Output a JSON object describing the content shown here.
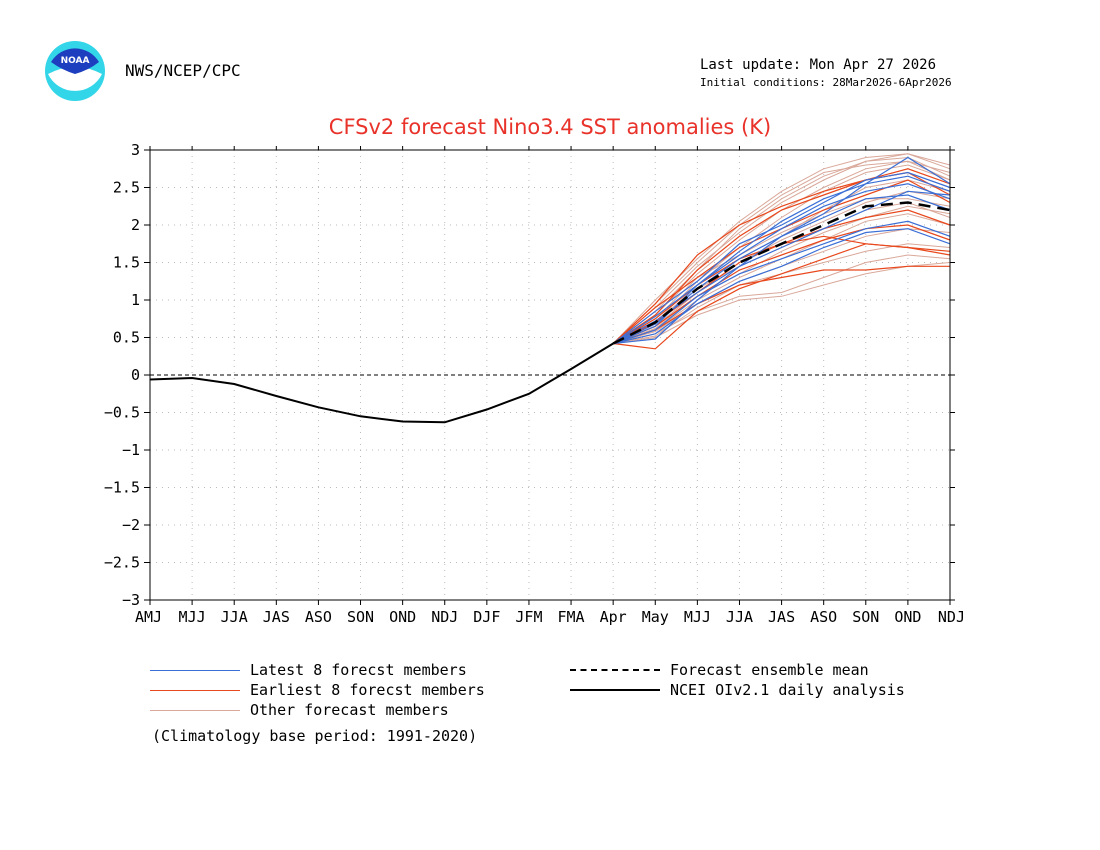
{
  "header": {
    "org": "NWS/NCEP/CPC",
    "last_update": "Last update: Mon Apr 27 2026",
    "initial_conditions": "Initial conditions: 28Mar2026-6Apr2026",
    "logo_text": "NOAA"
  },
  "colors": {
    "title": "#e8322a",
    "latest": "#3b6fd6",
    "earliest": "#e8481c",
    "other": "#d9a89a",
    "mean": "#000000",
    "analysis": "#000000"
  },
  "legend": {
    "latest": "Latest 8 forecst members",
    "earliest": "Earliest 8 forecst members",
    "other": "Other forecast members",
    "mean": "Forecast ensemble mean",
    "analysis": "NCEI OIv2.1 daily analysis"
  },
  "climatology_note": "(Climatology base period: 1991-2020)",
  "chart_data": {
    "type": "line",
    "title": "CFSv2 forecast Nino3.4 SST anomalies (K)",
    "categories": [
      "AMJ",
      "MJJ",
      "JJA",
      "JAS",
      "ASO",
      "SON",
      "OND",
      "NDJ",
      "DJF",
      "JFM",
      "FMA",
      "Apr",
      "May",
      "MJJ",
      "JJA",
      "JAS",
      "ASO",
      "SON",
      "OND",
      "NDJ"
    ],
    "ylim": [
      -3,
      3
    ],
    "yticks": [
      -3,
      -2.5,
      -2,
      -1.5,
      -1,
      -0.5,
      0,
      0.5,
      1,
      1.5,
      2,
      2.5,
      3
    ],
    "grid": true,
    "zero_line": true,
    "analysis": {
      "name": "NCEI OIv2.1 daily analysis",
      "values": [
        -0.06,
        -0.04,
        -0.12,
        -0.28,
        -0.43,
        -0.55,
        -0.62,
        -0.63,
        -0.46,
        -0.25,
        0.08,
        0.42
      ]
    },
    "forecast_start_index": 11,
    "ensemble_mean": {
      "name": "Forecast ensemble mean",
      "values": [
        0.42,
        0.7,
        1.15,
        1.5,
        1.75,
        2.0,
        2.25,
        2.3,
        2.2
      ]
    },
    "latest_members": [
      [
        0.42,
        0.48,
        1.0,
        1.45,
        1.85,
        2.15,
        2.55,
        2.9,
        2.55
      ],
      [
        0.42,
        0.72,
        1.1,
        1.45,
        1.7,
        1.95,
        2.2,
        2.45,
        2.4
      ],
      [
        0.42,
        0.65,
        1.2,
        1.6,
        1.95,
        2.25,
        2.45,
        2.55,
        2.35
      ],
      [
        0.42,
        0.6,
        1.05,
        1.35,
        1.55,
        1.75,
        1.95,
        2.05,
        1.85
      ],
      [
        0.42,
        0.85,
        1.25,
        1.75,
        2.0,
        2.3,
        2.6,
        2.7,
        2.5
      ],
      [
        0.42,
        0.55,
        0.95,
        1.25,
        1.45,
        1.7,
        1.9,
        1.95,
        1.75
      ],
      [
        0.42,
        0.68,
        1.15,
        1.55,
        1.85,
        2.1,
        2.35,
        2.4,
        2.2
      ],
      [
        0.42,
        0.78,
        1.2,
        1.65,
        2.05,
        2.35,
        2.55,
        2.65,
        2.45
      ]
    ],
    "earliest_members": [
      [
        0.42,
        0.35,
        0.85,
        1.15,
        1.35,
        1.55,
        1.75,
        1.7,
        1.6
      ],
      [
        0.42,
        0.95,
        1.6,
        2.0,
        2.25,
        2.45,
        2.6,
        2.75,
        2.55
      ],
      [
        0.42,
        0.8,
        1.4,
        1.85,
        2.2,
        2.4,
        2.6,
        2.7,
        2.4
      ],
      [
        0.42,
        0.6,
        0.95,
        1.2,
        1.3,
        1.4,
        1.4,
        1.45,
        1.45
      ],
      [
        0.42,
        0.7,
        1.1,
        1.5,
        1.75,
        1.95,
        2.1,
        2.2,
        2.0
      ],
      [
        0.42,
        0.9,
        1.3,
        1.7,
        1.95,
        2.2,
        2.4,
        2.6,
        2.3
      ],
      [
        0.42,
        0.75,
        1.2,
        1.55,
        1.75,
        1.85,
        1.75,
        1.7,
        1.65
      ],
      [
        0.42,
        0.65,
        1.05,
        1.4,
        1.6,
        1.8,
        1.95,
        2.0,
        1.8
      ]
    ],
    "other_members": [
      [
        0.42,
        1.0,
        1.55,
        2.05,
        2.45,
        2.75,
        2.9,
        2.95,
        2.8
      ],
      [
        0.42,
        0.55,
        0.85,
        1.05,
        1.1,
        1.3,
        1.5,
        1.6,
        1.55
      ],
      [
        0.42,
        0.9,
        1.45,
        1.9,
        2.3,
        2.6,
        2.85,
        2.9,
        2.65
      ],
      [
        0.42,
        0.6,
        1.0,
        1.3,
        1.55,
        1.8,
        2.05,
        2.15,
        2.0
      ],
      [
        0.42,
        0.7,
        1.25,
        1.7,
        2.1,
        2.45,
        2.7,
        2.8,
        2.6
      ],
      [
        0.42,
        0.5,
        0.8,
        1.0,
        1.05,
        1.2,
        1.35,
        1.45,
        1.5
      ],
      [
        0.42,
        0.8,
        1.35,
        1.8,
        2.2,
        2.5,
        2.75,
        2.85,
        2.7
      ],
      [
        0.42,
        0.65,
        1.1,
        1.5,
        1.8,
        2.05,
        2.3,
        2.45,
        2.35
      ],
      [
        0.42,
        0.75,
        1.3,
        1.6,
        1.9,
        2.15,
        2.35,
        2.35,
        2.25
      ],
      [
        0.42,
        0.58,
        0.95,
        1.25,
        1.45,
        1.65,
        1.85,
        1.95,
        1.9
      ],
      [
        0.42,
        0.85,
        1.4,
        1.95,
        2.35,
        2.65,
        2.85,
        2.95,
        2.75
      ],
      [
        0.42,
        0.62,
        1.05,
        1.35,
        1.65,
        1.9,
        2.1,
        2.25,
        2.15
      ],
      [
        0.42,
        0.72,
        1.15,
        1.45,
        1.7,
        1.95,
        2.2,
        2.3,
        2.1
      ],
      [
        0.42,
        0.52,
        0.9,
        1.2,
        1.35,
        1.5,
        1.65,
        1.75,
        1.7
      ],
      [
        0.42,
        0.95,
        1.5,
        2.0,
        2.4,
        2.7,
        2.8,
        2.85,
        2.6
      ],
      [
        0.42,
        0.68,
        1.2,
        1.55,
        1.85,
        2.2,
        2.5,
        2.6,
        2.45
      ]
    ]
  }
}
